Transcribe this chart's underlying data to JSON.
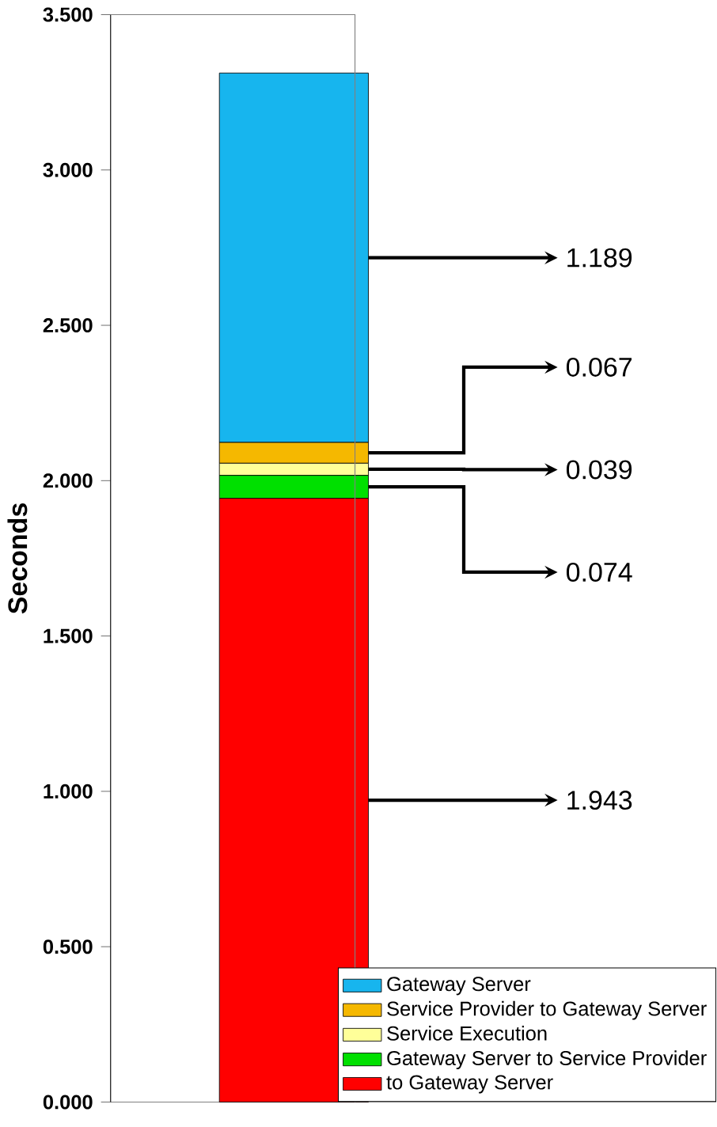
{
  "chart_data": {
    "type": "bar",
    "stacked": true,
    "ylabel": "Seconds",
    "categories": [
      null
    ],
    "ylim": [
      0,
      3.5
    ],
    "yticks": [
      {
        "value": 0,
        "label": "0.000"
      },
      {
        "value": 0.5,
        "label": "0.500"
      },
      {
        "value": 1,
        "label": "1.000"
      },
      {
        "value": 1.5,
        "label": "1.500"
      },
      {
        "value": 2,
        "label": "2.000"
      },
      {
        "value": 2.5,
        "label": "2.500"
      },
      {
        "value": 3,
        "label": "3.000"
      },
      {
        "value": 3.5,
        "label": "3.500"
      }
    ],
    "legend": "bottom right",
    "grid": false,
    "series": [
      {
        "name": "to Gateway Server",
        "color": "#ff0000",
        "values": [
          1.943
        ],
        "value_labels": [
          "1.943"
        ]
      },
      {
        "name": "Gateway Server to Service Provider",
        "color": "#00e000",
        "values": [
          0.074
        ],
        "value_labels": [
          "0.074"
        ]
      },
      {
        "name": "Service Execution",
        "color": "#ffff99",
        "values": [
          0.039
        ],
        "value_labels": [
          "0.039"
        ]
      },
      {
        "name": "Service Provider to Gateway Server",
        "color": "#f5b800",
        "values": [
          0.067
        ],
        "value_labels": [
          "0.067"
        ]
      },
      {
        "name": "Gateway Server",
        "color": "#17b5ee",
        "values": [
          1.189
        ],
        "value_labels": [
          "1.189"
        ]
      }
    ]
  }
}
